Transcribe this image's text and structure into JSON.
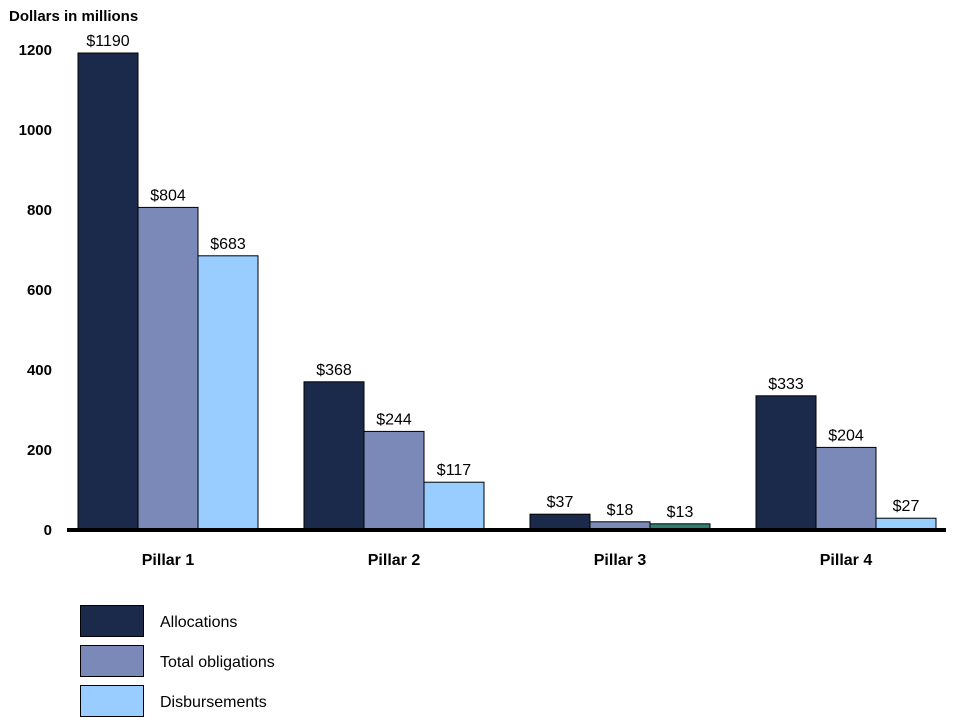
{
  "chart_data": {
    "type": "bar",
    "ylabel": "Dollars in millions",
    "ylim": [
      0,
      1200
    ],
    "yticks": [
      0,
      200,
      400,
      600,
      800,
      1000,
      1200
    ],
    "categories": [
      "Pillar 1",
      "Pillar 2",
      "Pillar 3",
      "Pillar 4"
    ],
    "series": [
      {
        "name": "Allocations",
        "color": "#1b2a4a",
        "values": [
          1190,
          368,
          37,
          333
        ],
        "labels": [
          "$1190",
          "$368",
          "$37",
          "$333"
        ]
      },
      {
        "name": "Total obligations",
        "color": "#7b89b8",
        "values": [
          804,
          244,
          18,
          204
        ],
        "labels": [
          "$804",
          "$244",
          "$18",
          "$204"
        ]
      },
      {
        "name": "Disbursements",
        "color": "#99ccff",
        "values": [
          683,
          117,
          13,
          27
        ],
        "labels": [
          "$683",
          "$117",
          "$13",
          "$27"
        ]
      }
    ],
    "special_colors": {
      "Pillar 3": {
        "Disbursements": "#2e7d6e"
      }
    },
    "legend_position": "bottom-left",
    "grid": false
  }
}
